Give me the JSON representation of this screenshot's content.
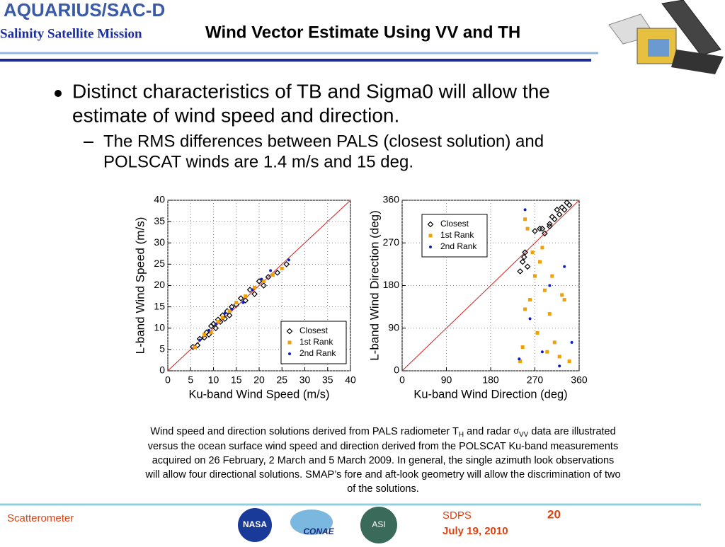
{
  "header": {
    "logo": "AQUARIUS/SAC-D",
    "mission": "Salinity Satellite Mission",
    "title": "Wind Vector Estimate Using VV and TH"
  },
  "bullets": {
    "main": [
      "Distinct characteristics of TB and Sigma0 will allow the",
      "estimate of wind speed and direction."
    ],
    "sub": [
      "The RMS differences between PALS (closest solution) and",
      "POLSCAT winds are 1.4 m/s and 15 deg."
    ]
  },
  "chart_data": [
    {
      "type": "scatter",
      "xlabel": "Ku-band Wind Speed (m/s)",
      "ylabel": "L-band Wind Speed (m/s)",
      "xlim": [
        0,
        40
      ],
      "ylim": [
        0,
        40
      ],
      "xticks": [
        0,
        5,
        10,
        15,
        20,
        25,
        30,
        35,
        40
      ],
      "yticks": [
        0,
        5,
        10,
        15,
        20,
        25,
        30,
        35,
        40
      ],
      "grid": true,
      "legend": "lower right",
      "series": [
        {
          "name": "Closest",
          "color": "#000000",
          "marker": "diamond",
          "x": [
            5.5,
            6.5,
            7,
            8,
            8.5,
            9,
            9.5,
            10,
            10.5,
            11,
            11.5,
            12,
            12.5,
            13,
            13.5,
            14,
            15,
            16,
            17,
            18,
            19,
            20,
            21,
            22,
            24,
            26
          ],
          "values": [
            5.6,
            6,
            7.5,
            7.8,
            9,
            8.5,
            10.5,
            11,
            10,
            12,
            11.5,
            13,
            12.2,
            14,
            13,
            15,
            15.5,
            17,
            16.5,
            19,
            18,
            21,
            20,
            22,
            23,
            25
          ]
        },
        {
          "name": "1st Rank",
          "color": "#f0a000",
          "marker": "square",
          "x": [
            6,
            8,
            9.5,
            11,
            12,
            13.5,
            15,
            17,
            19,
            21,
            23,
            25
          ],
          "values": [
            5.5,
            8.5,
            9,
            11.5,
            12.5,
            14,
            16,
            17.5,
            19.5,
            21,
            22.5,
            24
          ]
        },
        {
          "name": "2nd Rank",
          "color": "#1020c0",
          "marker": "dot",
          "x": [
            7,
            9,
            10.5,
            12.5,
            14,
            16.5,
            18.5,
            20.5,
            22.5,
            26.5
          ],
          "values": [
            7.2,
            9.5,
            11,
            13.5,
            14.5,
            16,
            19,
            21.5,
            23.5,
            26
          ]
        }
      ]
    },
    {
      "type": "scatter",
      "xlabel": "Ku-band Wind Direction (deg)",
      "ylabel": "L-band Wind Direction (deg)",
      "xlim": [
        0,
        360
      ],
      "ylim": [
        0,
        360
      ],
      "xticks": [
        0,
        90,
        180,
        270,
        360
      ],
      "yticks": [
        0,
        90,
        180,
        270,
        360
      ],
      "grid": true,
      "legend": "upper left",
      "series": [
        {
          "name": "Closest",
          "color": "#000000",
          "marker": "diamond",
          "x": [
            240,
            245,
            250,
            255,
            248,
            280,
            290,
            300,
            310,
            320,
            330,
            340,
            300,
            315,
            325,
            270,
            285,
            305,
            335
          ],
          "values": [
            210,
            230,
            250,
            220,
            240,
            300,
            290,
            310,
            320,
            330,
            340,
            350,
            305,
            340,
            345,
            295,
            300,
            325,
            355
          ]
        },
        {
          "name": "1st Rank",
          "color": "#f0a000",
          "marker": "square",
          "x": [
            240,
            245,
            250,
            260,
            270,
            280,
            290,
            300,
            310,
            320,
            330,
            250,
            265,
            285,
            305,
            325,
            340,
            255,
            275,
            295
          ],
          "values": [
            20,
            50,
            130,
            150,
            200,
            230,
            170,
            120,
            60,
            30,
            150,
            320,
            250,
            260,
            200,
            160,
            20,
            300,
            80,
            40
          ]
        },
        {
          "name": "2nd Rank",
          "color": "#1020c0",
          "marker": "dot",
          "x": [
            238,
            260,
            285,
            300,
            320,
            345,
            250,
            330
          ],
          "values": [
            25,
            110,
            40,
            180,
            10,
            60,
            340,
            220
          ]
        }
      ]
    }
  ],
  "caption": {
    "first": [
      "Wind speed and direction solutions derived from PALS radiometer T",
      "H",
      " and radar ",
      "σ",
      "VV",
      " data are illustrated"
    ],
    "lines": [
      "versus the ocean surface wind speed and direction derived from the POLSCAT Ku-band measurements",
      "acquired on 26 February, 2 March and 5 March 2009. In general, the single azimuth look observations",
      "will allow four directional solutions. SMAP’s fore and aft-look geometry will allow the discrimination of two",
      "of the solutions."
    ]
  },
  "footer": {
    "left": "Scatterometer",
    "org": "SDPS",
    "date": "July 19, 2010",
    "page": "20",
    "logos": [
      "NASA",
      "CONAE",
      "ASI"
    ]
  }
}
